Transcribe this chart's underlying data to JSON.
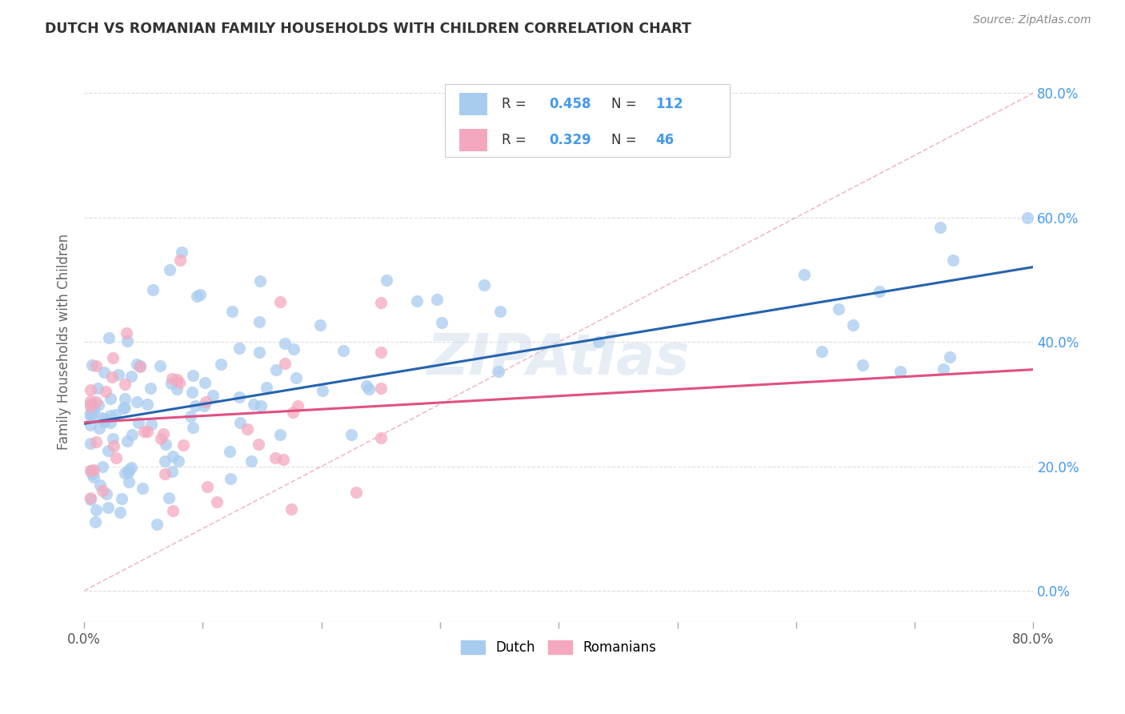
{
  "title": "DUTCH VS ROMANIAN FAMILY HOUSEHOLDS WITH CHILDREN CORRELATION CHART",
  "source": "Source: ZipAtlas.com",
  "ylabel": "Family Households with Children",
  "xlim": [
    0.0,
    0.8
  ],
  "ylim": [
    -0.05,
    0.85
  ],
  "yticks": [
    0.0,
    0.2,
    0.4,
    0.6,
    0.8
  ],
  "dutch_R": 0.458,
  "dutch_N": 112,
  "romanian_R": 0.329,
  "romanian_N": 46,
  "dutch_scatter_color": "#A8CCF0",
  "dutch_line_color": "#2563AE",
  "romanian_scatter_color": "#F4A8BE",
  "romanian_line_color": "#E05080",
  "diagonal_color": "#E8A0B0",
  "grid_color": "#DDDDDD",
  "background_color": "#FFFFFF",
  "right_axis_color": "#4499EE",
  "title_color": "#333333",
  "source_color": "#888888",
  "ylabel_color": "#666666",
  "watermark_text": "ZIPAtlas",
  "legend_label1": "Dutch",
  "legend_label2": "Romanians",
  "dutch_seed": 42,
  "romanian_seed": 99
}
